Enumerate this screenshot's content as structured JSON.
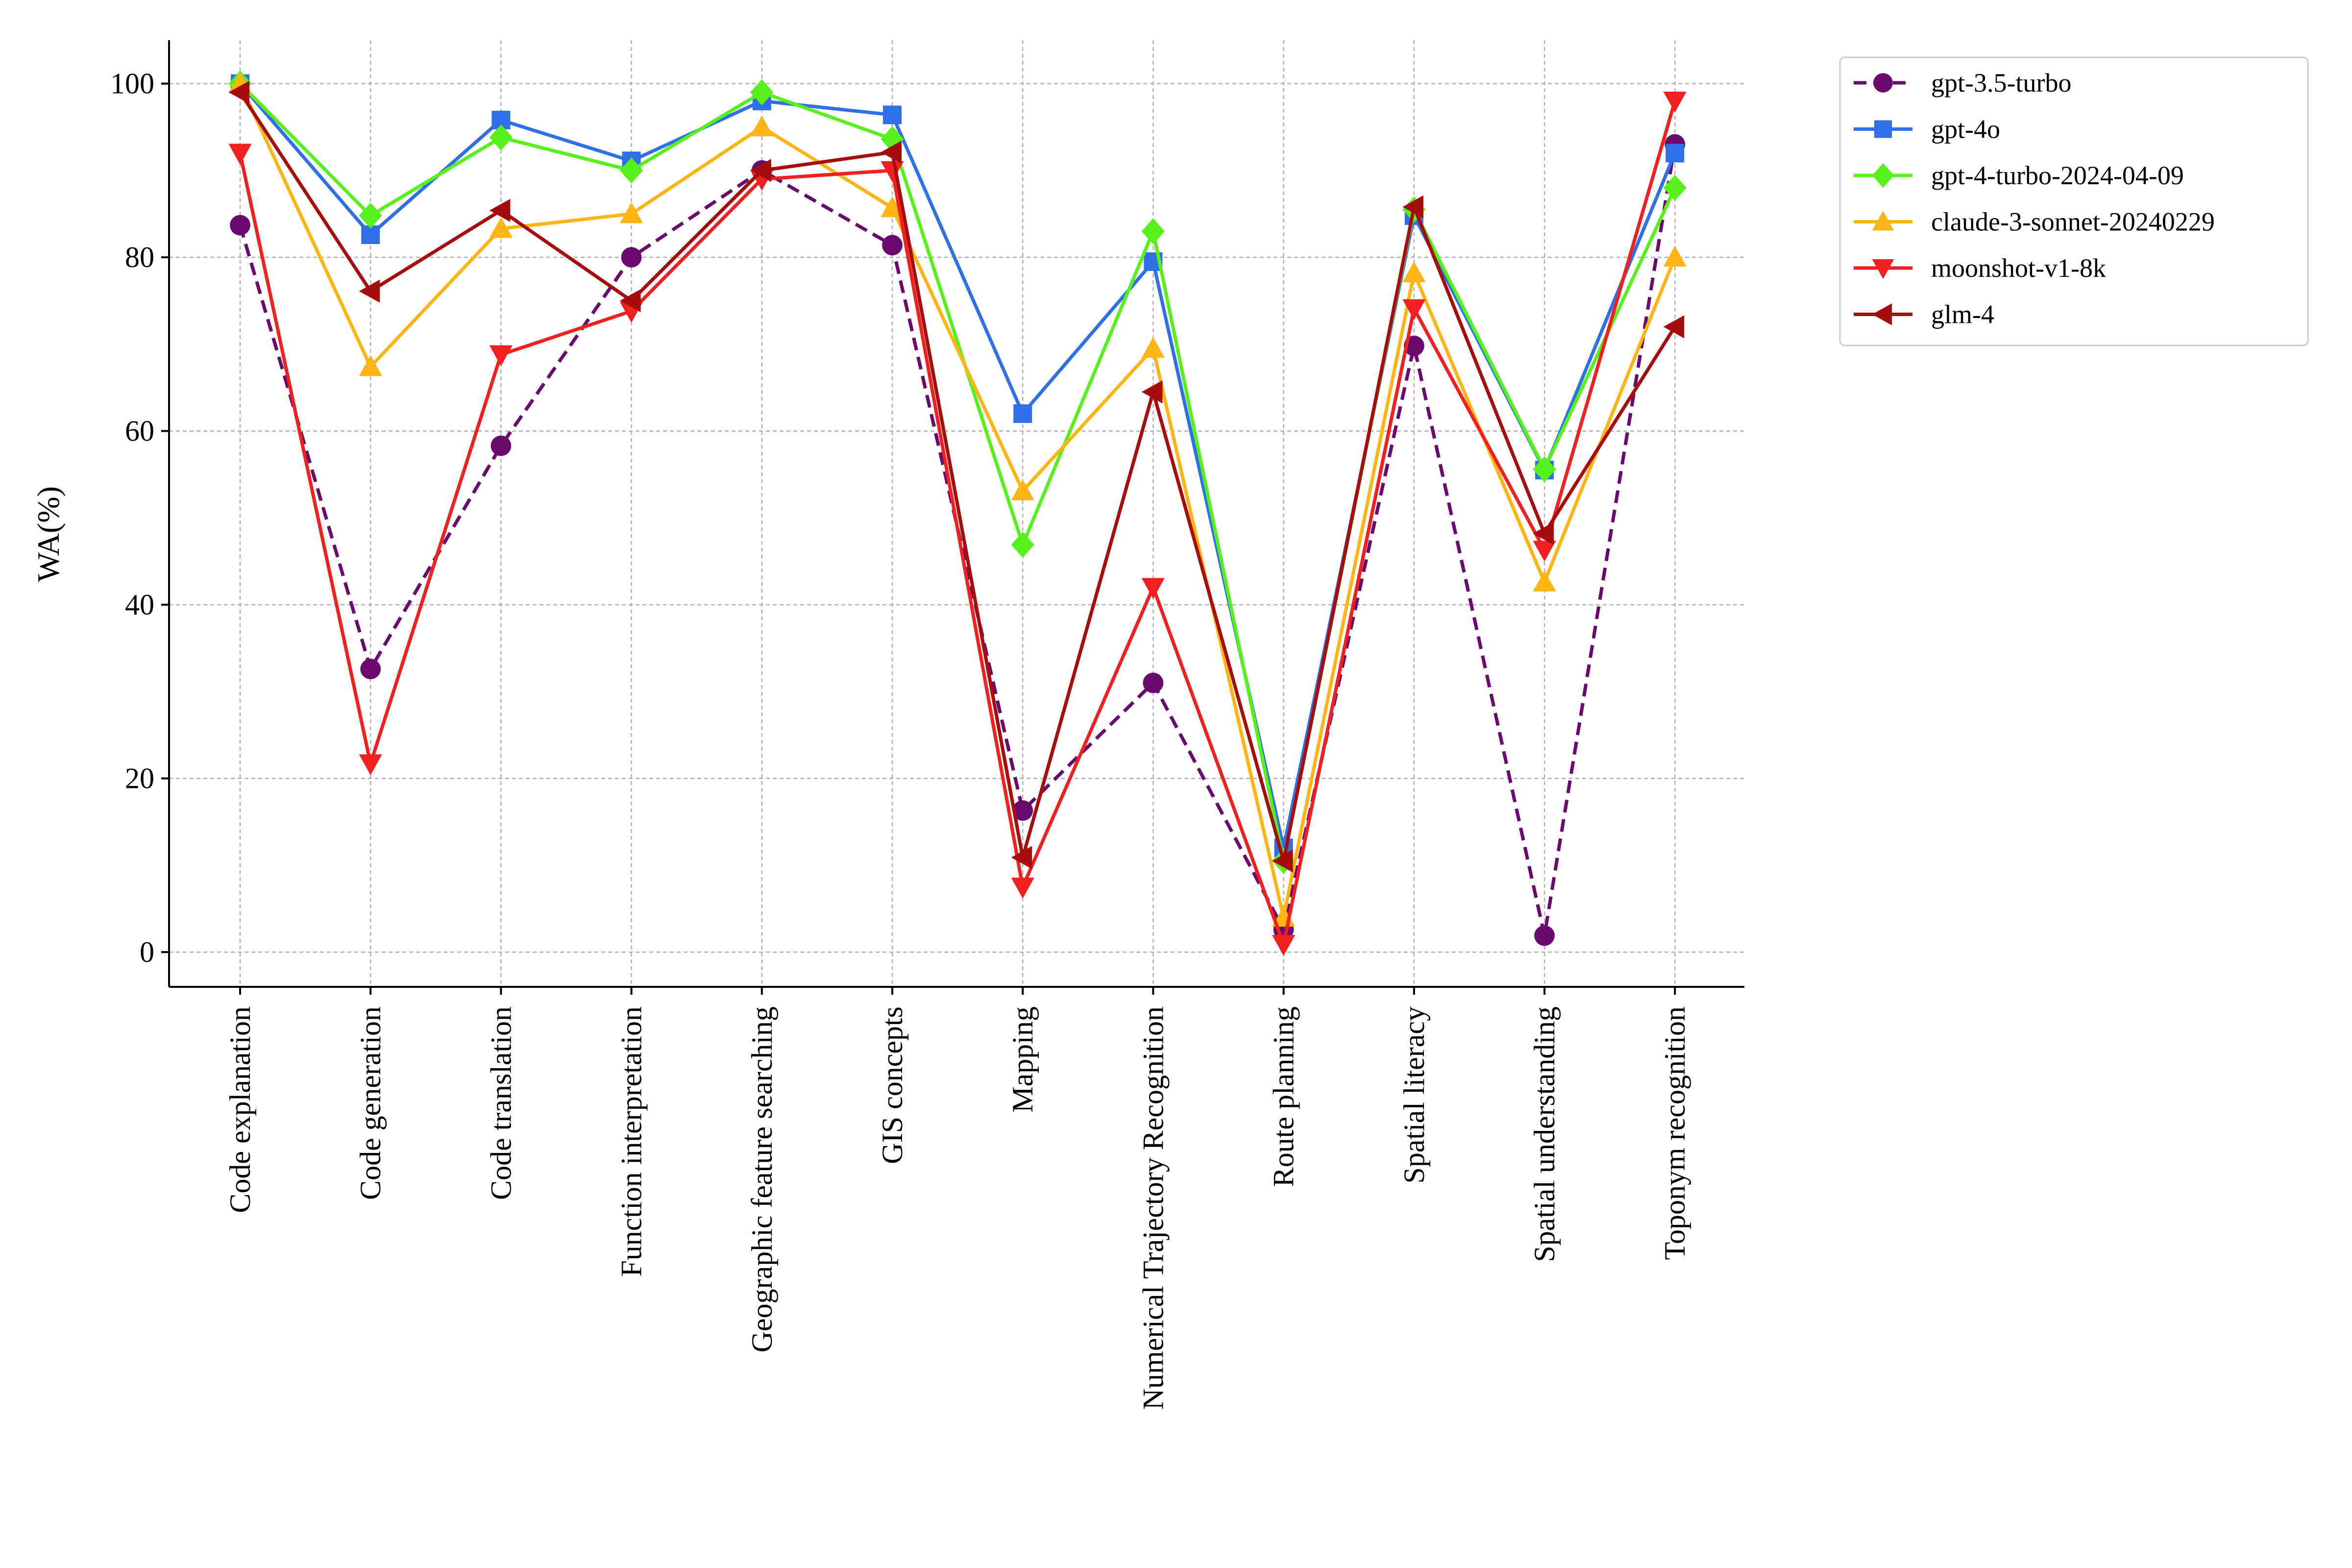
{
  "chart_data": {
    "type": "line",
    "title": "",
    "xlabel": "",
    "ylabel": "WA(%)",
    "ylim": [
      -4,
      105
    ],
    "yticks": [
      0,
      20,
      40,
      60,
      80,
      100
    ],
    "grid": true,
    "legend_position": "outside-top-right",
    "categories": [
      "Code explanation",
      "Code generation",
      "Code translation",
      "Function interpretation",
      "Geographic feature searching",
      "GIS concepts",
      "Mapping",
      "Numerical Trajectory Recognition",
      "Route planning",
      "Spatial literacy",
      "Spatial understanding",
      "Toponym recognition"
    ],
    "series": [
      {
        "name": "gpt-3.5-turbo",
        "color": "#6a0a6e",
        "marker": "circle",
        "dash": "dashed",
        "values": [
          83.7,
          32.6,
          58.3,
          80.0,
          90.0,
          81.4,
          16.3,
          31.0,
          2.6,
          69.8,
          1.9,
          93.0
        ]
      },
      {
        "name": "gpt-4o",
        "color": "#2f6fe8",
        "marker": "square",
        "dash": "solid",
        "values": [
          100.0,
          82.6,
          95.8,
          91.1,
          98.0,
          96.4,
          62.0,
          79.5,
          12.0,
          84.8,
          55.5,
          92.0
        ]
      },
      {
        "name": "gpt-4-turbo-2024-04-09",
        "color": "#58f01c",
        "marker": "diamond",
        "dash": "solid",
        "values": [
          100.0,
          84.8,
          93.8,
          90.0,
          99.0,
          93.6,
          46.9,
          83.0,
          10.5,
          85.5,
          55.6,
          88.0
        ]
      },
      {
        "name": "claude-3-sonnet-20240229",
        "color": "#fcb514",
        "marker": "triangle-up",
        "dash": "solid",
        "values": [
          100.0,
          67.4,
          83.3,
          85.0,
          95.0,
          85.7,
          53.1,
          69.5,
          4.0,
          78.2,
          42.6,
          80.0
        ]
      },
      {
        "name": "moonshot-v1-8k",
        "color": "#f02020",
        "marker": "triangle-down",
        "dash": "solid",
        "values": [
          92.0,
          21.7,
          68.8,
          73.8,
          89.0,
          90.0,
          7.5,
          42.0,
          0.9,
          74.1,
          46.3,
          98.0
        ]
      },
      {
        "name": "glm-4",
        "color": "#a80d0d",
        "marker": "triangle-left",
        "dash": "solid",
        "values": [
          99.0,
          76.1,
          85.4,
          75.0,
          90.0,
          92.1,
          10.9,
          64.5,
          10.5,
          85.8,
          48.2,
          72.0
        ]
      }
    ]
  }
}
